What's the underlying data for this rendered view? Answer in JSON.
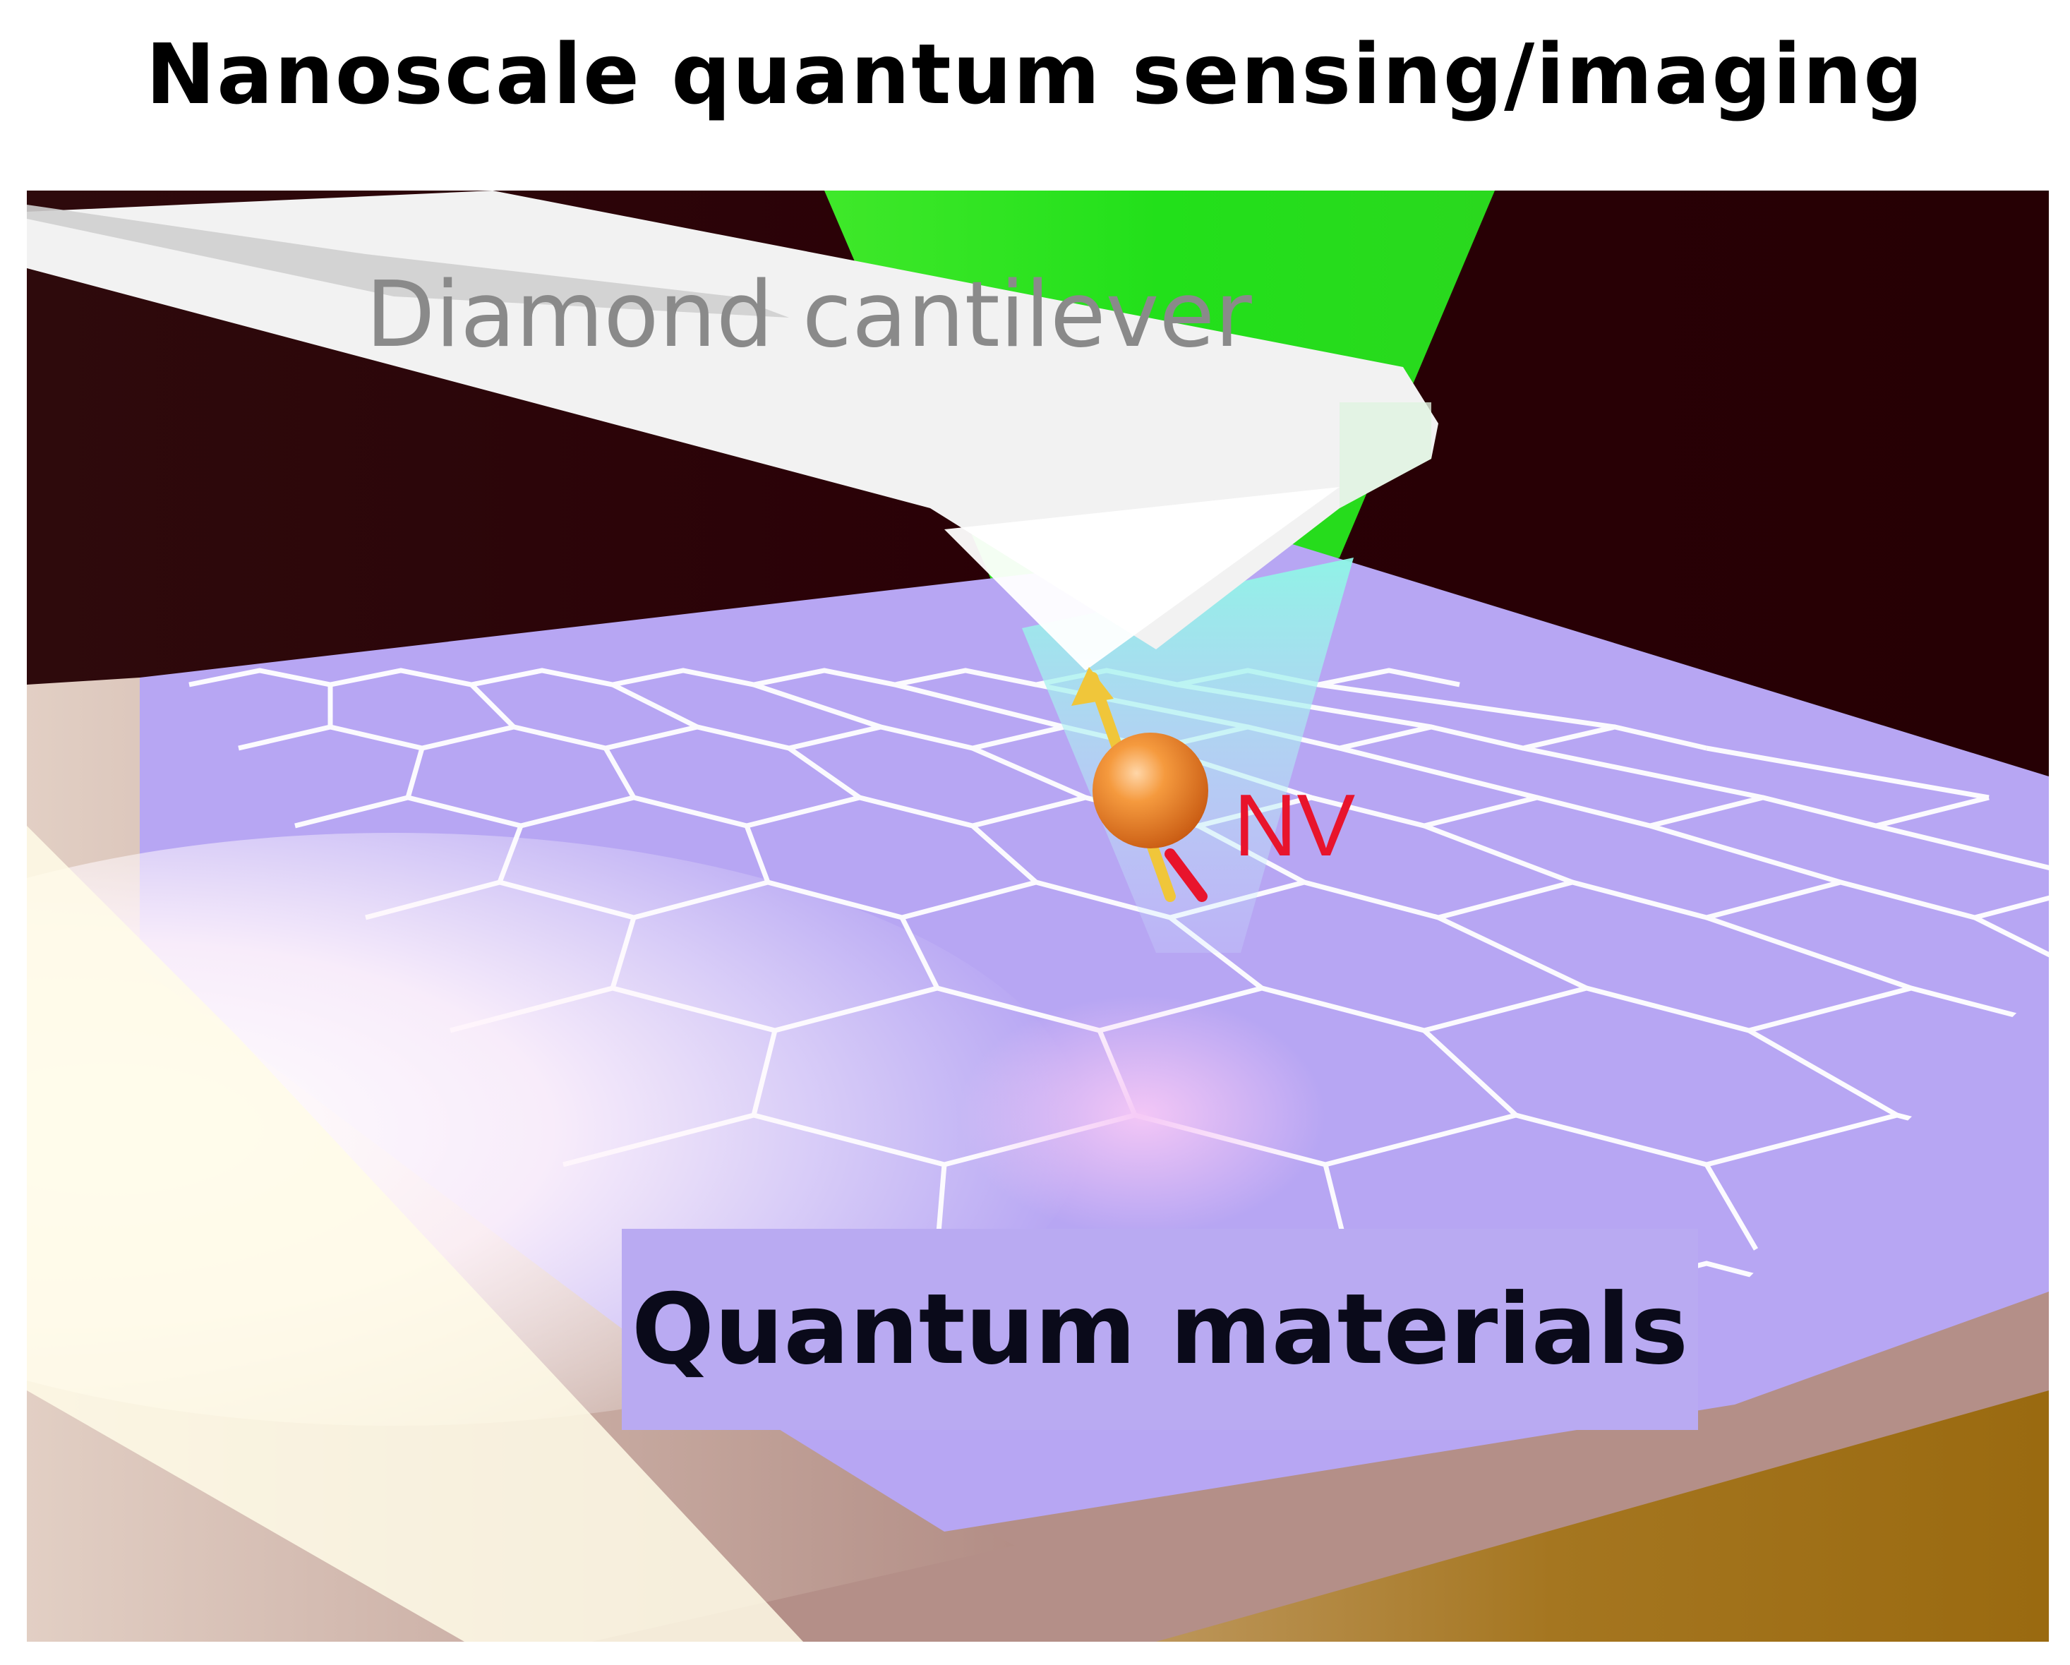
{
  "title": "Nanoscale quantum sensing/imaging",
  "labels": {
    "cantilever": "Diamond cantilever",
    "nv": "NV",
    "materials": "Quantum materials"
  },
  "colors": {
    "background_dark": "#2a0006",
    "laser_green": "#22e01a",
    "lattice_purple": "#b7a6f3",
    "lattice_lines": "#ffffff",
    "nv_sphere": "#f08a2c",
    "nv_label": "#e8142c",
    "substrate_gold": "#a06e12",
    "cantilever_white": "#f2f2f2"
  }
}
